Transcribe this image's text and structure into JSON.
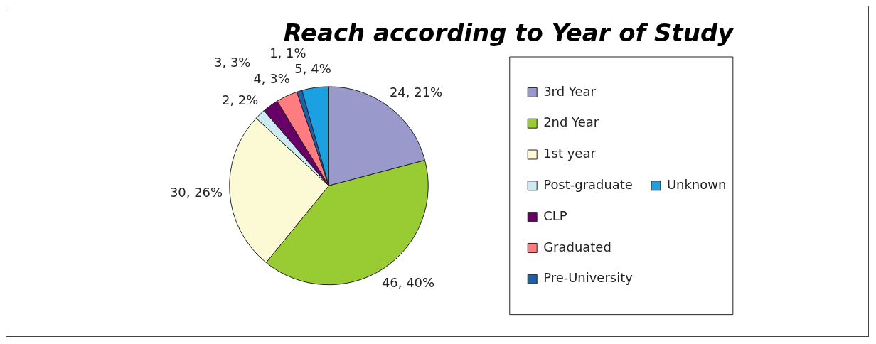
{
  "chart_data": {
    "type": "pie",
    "title": "Reach according to Year of Study",
    "categories": [
      "3rd Year",
      "2nd Year",
      "1st year",
      "Post-graduate",
      "CLP",
      "Graduated",
      "Pre-University",
      "Unknown"
    ],
    "values": [
      24,
      46,
      30,
      2,
      3,
      4,
      1,
      5
    ],
    "value_labels": [
      "24, 21%",
      "46, 40%",
      "30, 26%",
      "2, 2%",
      "3, 3%",
      "4, 3%",
      "1, 1%",
      "5, 4%"
    ],
    "colors": [
      "#9999cc",
      "#99cc33",
      "#fcfad4",
      "#cdeaf3",
      "#660066",
      "#ff7c80",
      "#1f5fa8",
      "#1ba1e2"
    ],
    "legend": "right"
  }
}
